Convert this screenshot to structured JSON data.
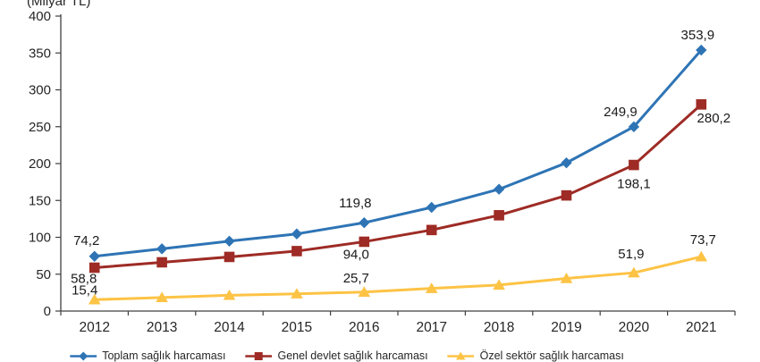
{
  "axis_title": "(Milyar TL)",
  "chart_data": {
    "type": "line",
    "title": "",
    "xlabel": "",
    "ylabel": "(Milyar TL)",
    "categories": [
      "2012",
      "2013",
      "2014",
      "2015",
      "2016",
      "2017",
      "2018",
      "2019",
      "2020",
      "2021"
    ],
    "ylim": [
      0,
      400
    ],
    "ytick_step": 50,
    "yticks": [
      "0",
      "50",
      "100",
      "150",
      "200",
      "250",
      "300",
      "350",
      "400"
    ],
    "grid": false,
    "legend_position": "bottom-clipped",
    "decimal_separator": ",",
    "series": [
      {
        "name": "Toplam sağlık harcaması",
        "color": "#2E74B5",
        "marker": "diamond",
        "values": [
          74.2,
          84.4,
          94.8,
          104.6,
          119.8,
          140.6,
          165.2,
          201.0,
          249.9,
          353.9
        ],
        "point_labels": [
          {
            "i": 0,
            "text": "74,2",
            "dx": -9,
            "dy": -13
          },
          {
            "i": 4,
            "text": "119,8",
            "dx": -10,
            "dy": -17
          },
          {
            "i": 8,
            "text": "249,9",
            "dx": -15,
            "dy": -12
          },
          {
            "i": 9,
            "text": "353,9",
            "dx": -4,
            "dy": -12
          }
        ]
      },
      {
        "name": "Genel devlet sağlık harcaması",
        "color": "#9E2B25",
        "marker": "square",
        "values": [
          58.8,
          66.1,
          73.4,
          81.3,
          94.0,
          109.9,
          129.9,
          156.8,
          198.1,
          280.2
        ],
        "point_labels": [
          {
            "i": 0,
            "text": "58,8",
            "dx": -12,
            "dy": 17
          },
          {
            "i": 4,
            "text": "94,0",
            "dx": -9,
            "dy": 19
          },
          {
            "i": 8,
            "text": "198,1",
            "dx": 0,
            "dy": 26
          },
          {
            "i": 9,
            "text": "280,2",
            "dx": 14,
            "dy": 20
          }
        ]
      },
      {
        "name": "Özel sektör sağlık harcaması",
        "color": "#FDC345",
        "marker": "triangle",
        "values": [
          15.4,
          18.4,
          21.4,
          23.4,
          25.7,
          30.7,
          35.3,
          44.2,
          51.9,
          73.7
        ],
        "point_labels": [
          {
            "i": 0,
            "text": "15,4",
            "dx": -11,
            "dy": -6
          },
          {
            "i": 4,
            "text": "25,7",
            "dx": -9,
            "dy": -11
          },
          {
            "i": 8,
            "text": "51,9",
            "dx": -3,
            "dy": -16
          },
          {
            "i": 9,
            "text": "73,7",
            "dx": 2,
            "dy": -14
          }
        ]
      }
    ]
  }
}
